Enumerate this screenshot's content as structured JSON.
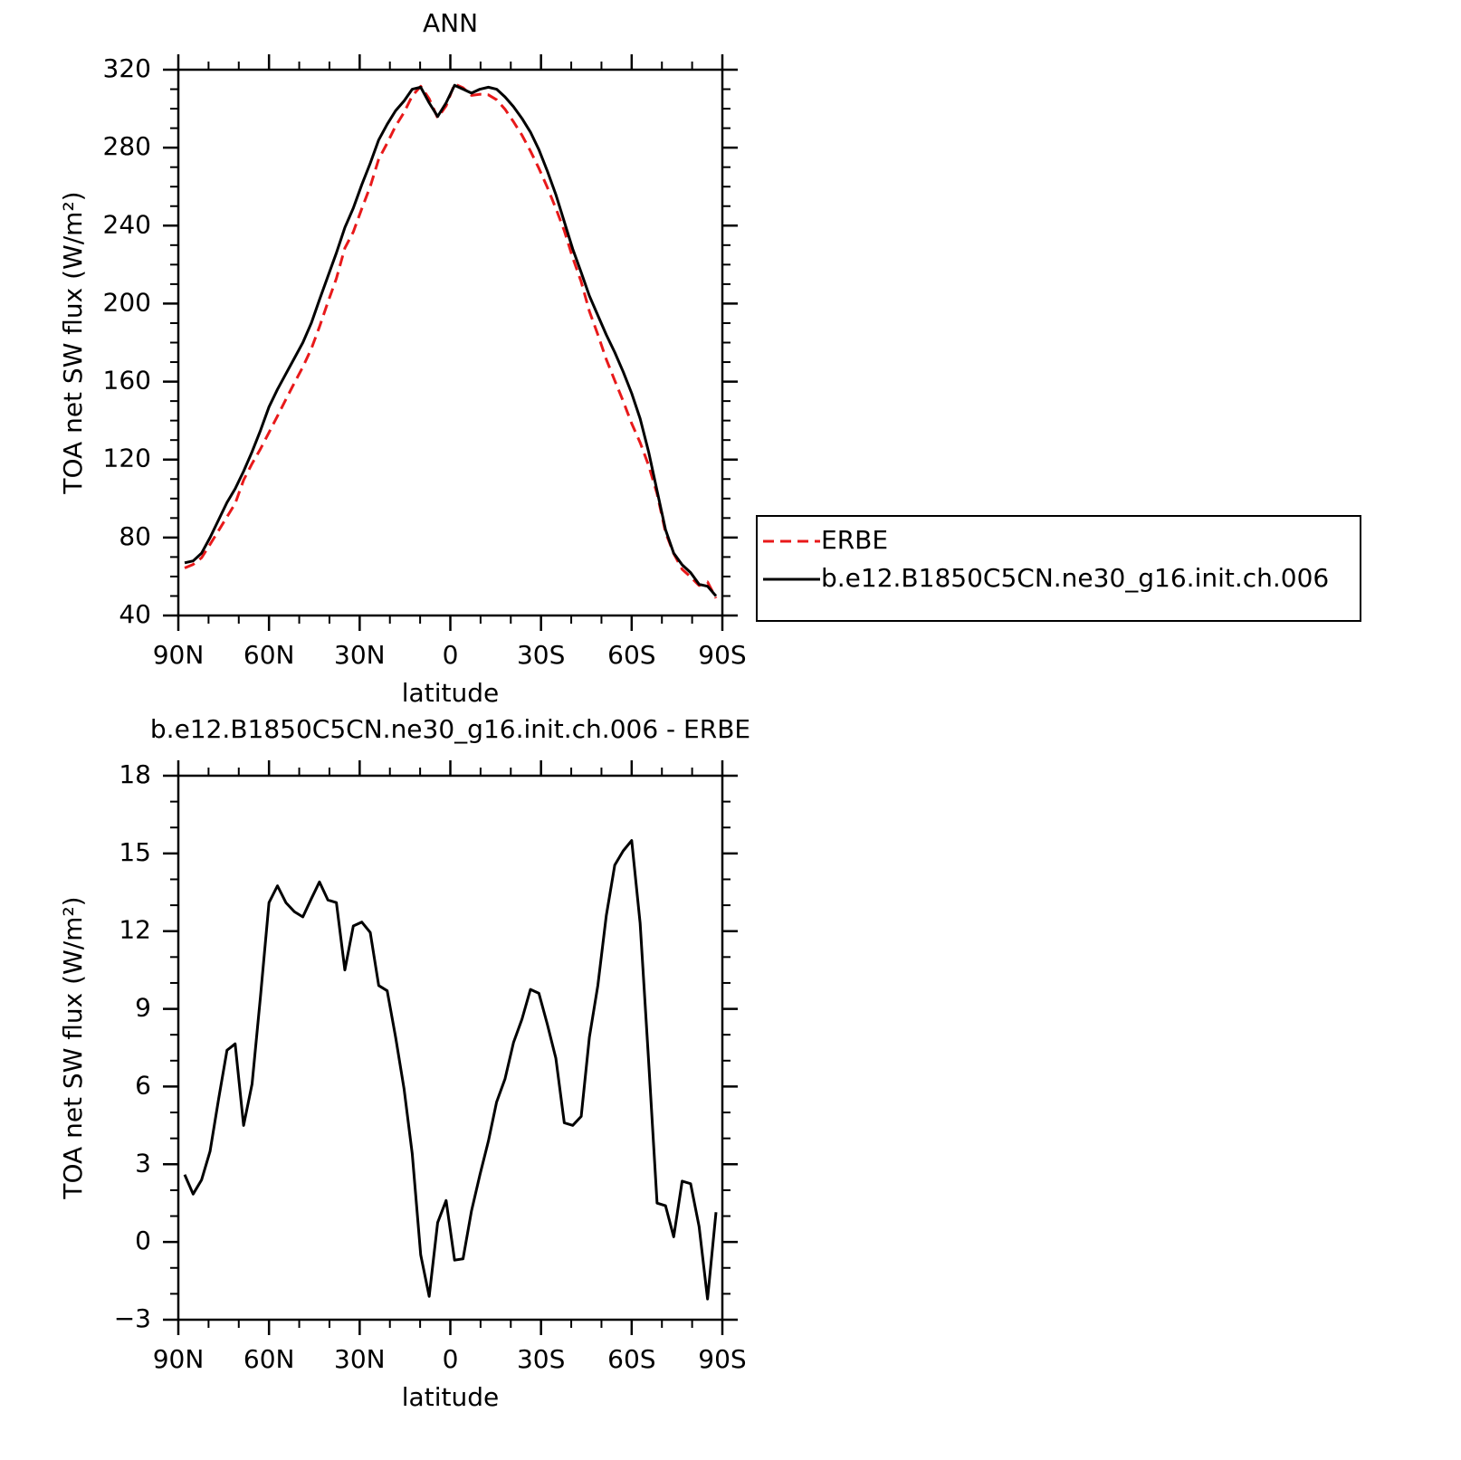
{
  "chart_data": [
    {
      "type": "line",
      "title": "ANN",
      "xlabel": "latitude",
      "ylabel": "TOA net SW flux (W/m²)",
      "xlim": [
        90,
        -90
      ],
      "xticks": [
        {
          "value": 90,
          "label": "90N"
        },
        {
          "value": 60,
          "label": "60N"
        },
        {
          "value": 30,
          "label": "30N"
        },
        0,
        {
          "value": -30,
          "label": "30S"
        },
        {
          "value": -60,
          "label": "60S"
        },
        {
          "value": -90,
          "label": "90S"
        }
      ],
      "minor_xticks": [
        80,
        70,
        50,
        40,
        20,
        10,
        -10,
        -20,
        -40,
        -50,
        -70,
        -80
      ],
      "ylim": [
        40,
        320
      ],
      "yticks": [
        40,
        80,
        120,
        160,
        200,
        240,
        280,
        320
      ],
      "minor_yticks": [
        50,
        60,
        70,
        90,
        100,
        110,
        130,
        140,
        150,
        170,
        180,
        190,
        210,
        220,
        230,
        250,
        260,
        270,
        290,
        300,
        310
      ],
      "legend": "right",
      "x": [
        87.9,
        85.1,
        82.3,
        79.5,
        76.7,
        73.9,
        71.2,
        68.4,
        65.6,
        62.8,
        60.0,
        57.2,
        54.4,
        51.6,
        48.8,
        46.0,
        43.3,
        40.5,
        37.7,
        34.9,
        32.1,
        29.3,
        26.5,
        23.7,
        20.9,
        18.1,
        15.3,
        12.6,
        9.8,
        7.0,
        4.2,
        1.4,
        -1.4,
        -4.2,
        -7.0,
        -9.8,
        -12.6,
        -15.3,
        -18.1,
        -20.9,
        -23.7,
        -26.5,
        -29.3,
        -32.1,
        -34.9,
        -37.7,
        -40.5,
        -43.3,
        -46.0,
        -48.8,
        -51.6,
        -54.4,
        -57.2,
        -60.0,
        -62.8,
        -65.6,
        -68.4,
        -71.2,
        -73.9,
        -76.7,
        -79.5,
        -82.3,
        -85.1,
        -87.9
      ],
      "series": [
        {
          "name": "ERBE",
          "color": "#e8191a",
          "linestyle": "dashed",
          "values": [
            64.4,
            66.2,
            69.6,
            76.5,
            83.5,
            90.6,
            97.4,
            109.5,
            117.9,
            125.5,
            133.9,
            142.3,
            150.9,
            159.3,
            167.5,
            176.8,
            188.1,
            200.8,
            212.9,
            228.5,
            236.8,
            248.7,
            260.1,
            274.1,
            282.3,
            291.1,
            298.1,
            306.6,
            311.5,
            305.1,
            295.3,
            301.4,
            312.7,
            310.7,
            306.8,
            307.4,
            307.1,
            304.6,
            299.7,
            293.3,
            286.4,
            278.3,
            269.4,
            259.6,
            248.9,
            237.4,
            223.5,
            211.2,
            196.1,
            184.1,
            171.4,
            160.5,
            149.9,
            138.5,
            128.7,
            117,
            102.5,
            82.6,
            71.8,
            63.7,
            59.8,
            55.4,
            57.2,
            48.9
          ]
        },
        {
          "name": "b.e12.B1850C5CN.ne30_g16.init.ch.006",
          "color": "#000000",
          "linestyle": "solid",
          "values": [
            67,
            68,
            72,
            80,
            89,
            98,
            105,
            114,
            124,
            135,
            147,
            156,
            164,
            172,
            180,
            190,
            202,
            214,
            226,
            239,
            249,
            261,
            272,
            284,
            292,
            299,
            304,
            310,
            311,
            303,
            296,
            303,
            312,
            310,
            308,
            310,
            311,
            310,
            306,
            301,
            295,
            288,
            279,
            268,
            256,
            242,
            228,
            216,
            204,
            194,
            184,
            175,
            165,
            154,
            141,
            124,
            104,
            84,
            72,
            66,
            62,
            56,
            55,
            50
          ]
        }
      ]
    },
    {
      "type": "line",
      "title": "b.e12.B1850C5CN.ne30_g16.init.ch.006 - ERBE",
      "xlabel": "latitude",
      "ylabel": "TOA net SW flux (W/m²)",
      "xlim": [
        90,
        -90
      ],
      "xticks": [
        {
          "value": 90,
          "label": "90N"
        },
        {
          "value": 60,
          "label": "60N"
        },
        {
          "value": 30,
          "label": "30N"
        },
        0,
        {
          "value": -30,
          "label": "30S"
        },
        {
          "value": -60,
          "label": "60S"
        },
        {
          "value": -90,
          "label": "90S"
        }
      ],
      "minor_xticks": [
        80,
        70,
        50,
        40,
        20,
        10,
        -10,
        -20,
        -40,
        -50,
        -70,
        -80
      ],
      "ylim": [
        -3,
        18
      ],
      "yticks": [
        {
          "value": -3,
          "label": "−3"
        },
        0,
        3,
        6,
        9,
        12,
        15,
        18
      ],
      "minor_yticks": [
        -2,
        -1,
        1,
        2,
        4,
        5,
        7,
        8,
        10,
        11,
        13,
        14,
        16,
        17
      ],
      "color": "#000000",
      "x": [
        87.9,
        85.1,
        82.3,
        79.5,
        76.7,
        73.9,
        71.2,
        68.4,
        65.6,
        62.8,
        60.0,
        57.2,
        54.4,
        51.6,
        48.8,
        46.0,
        43.3,
        40.5,
        37.7,
        34.9,
        32.1,
        29.3,
        26.5,
        23.7,
        20.9,
        18.1,
        15.3,
        12.6,
        9.8,
        7.0,
        4.2,
        1.4,
        -1.4,
        -4.2,
        -7.0,
        -9.8,
        -12.6,
        -15.3,
        -18.1,
        -20.9,
        -23.7,
        -26.5,
        -29.3,
        -32.1,
        -34.9,
        -37.7,
        -40.5,
        -43.3,
        -46.0,
        -48.8,
        -51.6,
        -54.4,
        -57.2,
        -60.0,
        -62.8,
        -65.6,
        -68.4,
        -71.2,
        -73.9,
        -76.7,
        -79.5,
        -82.3,
        -85.1,
        -87.9
      ],
      "values": [
        2.6,
        1.85,
        2.4,
        3.5,
        5.5,
        7.4,
        7.65,
        4.5,
        6.1,
        9.5,
        13.1,
        13.75,
        13.1,
        12.75,
        12.55,
        13.25,
        13.9,
        13.2,
        13.1,
        10.5,
        12.2,
        12.35,
        11.95,
        9.9,
        9.7,
        7.9,
        5.9,
        3.4,
        -0.5,
        -2.1,
        0.75,
        1.6,
        -0.7,
        -0.65,
        1.2,
        2.6,
        3.9,
        5.4,
        6.3,
        7.7,
        8.6,
        9.75,
        9.6,
        8.4,
        7.1,
        4.6,
        4.5,
        4.85,
        7.9,
        9.9,
        12.6,
        14.55,
        15.1,
        15.5,
        12.3,
        7.0,
        1.5,
        1.4,
        0.2,
        2.35,
        2.25,
        0.6,
        -2.2,
        1.15
      ]
    }
  ]
}
